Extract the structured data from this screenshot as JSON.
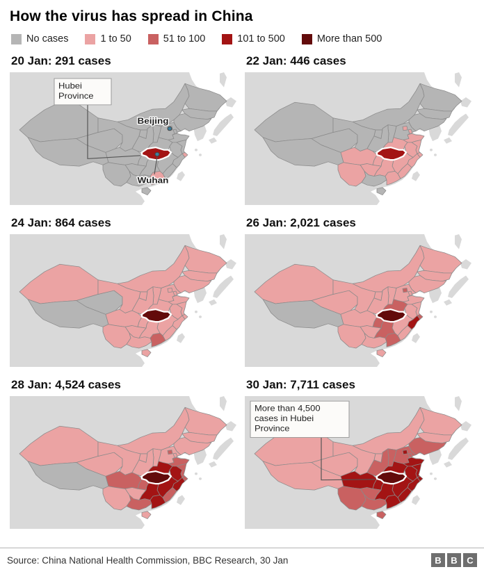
{
  "title": "How the virus has spread in China",
  "colors": {
    "land": "#d9d9d9",
    "sea": "#ffffff",
    "border": "#8a8a8a",
    "hubei_outline": "#ffffff",
    "city_dot": "#3e7f9d",
    "callout_bg": "#fcfbf9",
    "callout_border": "#999999",
    "levels": [
      "#b5b5b5",
      "#eba3a3",
      "#c96161",
      "#a31414",
      "#630b0b"
    ]
  },
  "legend": {
    "items": [
      {
        "label": "No cases",
        "color": "#b5b5b5"
      },
      {
        "label": "1 to 50",
        "color": "#eba3a3"
      },
      {
        "label": "51 to 100",
        "color": "#c96161"
      },
      {
        "label": "101 to 500",
        "color": "#a31414"
      },
      {
        "label": "More than 500",
        "color": "#630b0b"
      }
    ]
  },
  "maps": [
    {
      "id": "20-jan",
      "title": "20 Jan: 291 cases",
      "fill_levels": {
        "default": 0,
        "level1": [
          "guangdong",
          "shanghai"
        ],
        "level3": [
          "hubei"
        ]
      },
      "callout": {
        "lines": [
          "Hubei",
          "Province"
        ]
      },
      "city_labels": {
        "beijing": "Beijing",
        "wuhan": "Wuhan"
      }
    },
    {
      "id": "22-jan",
      "title": "22 Jan: 446 cases",
      "fill_levels": {
        "default": 0,
        "level1": [
          "sichuan",
          "chongqing",
          "yunnan",
          "guizhou",
          "hunan",
          "henan",
          "anhui",
          "jiangsu",
          "shanghai",
          "zhejiang",
          "jiangxi",
          "fujian",
          "guangdong",
          "shandong",
          "beijing",
          "tianjin"
        ],
        "level3": [
          "hubei"
        ]
      }
    },
    {
      "id": "24-jan",
      "title": "24 Jan: 864 cases",
      "fill_levels": {
        "default": 1,
        "level0": [
          "tibet",
          "qinghai"
        ],
        "level2": [
          "guangdong"
        ],
        "level4": [
          "hubei"
        ]
      }
    },
    {
      "id": "26-jan",
      "title": "26 Jan: 2,021 cases",
      "fill_levels": {
        "default": 1,
        "level0": [
          "tibet"
        ],
        "level2": [
          "henan",
          "hunan",
          "chongqing",
          "guangdong",
          "beijing",
          "shanghai"
        ],
        "level3": [
          "zhejiang"
        ],
        "level4": [
          "hubei"
        ]
      }
    },
    {
      "id": "28-jan",
      "title": "28 Jan: 4,524 cases",
      "fill_levels": {
        "default": 1,
        "level0": [
          "tibet"
        ],
        "level2": [
          "sichuan",
          "chongqing",
          "shandong",
          "jiangsu",
          "fujian",
          "guangxi",
          "beijing",
          "shanghai"
        ],
        "level3": [
          "henan",
          "hunan",
          "anhui",
          "zhejiang",
          "jiangxi",
          "guangdong"
        ],
        "level4": [
          "hubei"
        ]
      }
    },
    {
      "id": "30-jan",
      "title": "30 Jan: 7,711 cases",
      "fill_levels": {
        "default": 1,
        "level2": [
          "yunnan",
          "guizhou",
          "guangxi",
          "shaanxi",
          "shanxi",
          "hebei",
          "tianjin",
          "liaoning",
          "hainan"
        ],
        "level3": [
          "sichuan",
          "chongqing",
          "henan",
          "anhui",
          "jiangsu",
          "shandong",
          "zhejiang",
          "shanghai",
          "jiangxi",
          "hunan",
          "fujian",
          "guangdong",
          "beijing"
        ],
        "level4": [
          "hubei"
        ]
      },
      "callout": {
        "lines": [
          "More than 4,500",
          "cases in Hubei",
          "Province"
        ]
      }
    }
  ],
  "footer": {
    "source": "Source: China National Health Commission, BBC Research, 30 Jan",
    "logo_blocks": [
      "B",
      "B",
      "C"
    ]
  },
  "chart_data": {
    "type": "choropleth-small-multiples",
    "categories": [
      "20 Jan",
      "22 Jan",
      "24 Jan",
      "26 Jan",
      "28 Jan",
      "30 Jan"
    ],
    "values": [
      291,
      446,
      864,
      2021,
      4524,
      7711
    ],
    "title": "How the virus has spread in China",
    "legend_bins": [
      "No cases",
      "1 to 50",
      "51 to 100",
      "101 to 500",
      "More than 500"
    ],
    "annotations": [
      "Hubei Province",
      "Beijing",
      "Wuhan",
      "More than 4,500 cases in Hubei Province"
    ]
  }
}
